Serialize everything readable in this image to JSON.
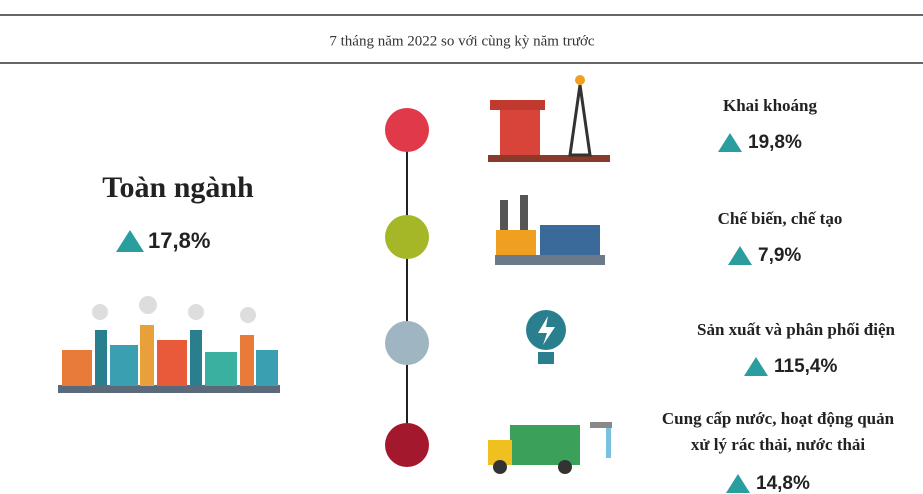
{
  "header": {
    "title": "7 tháng năm 2022 so với cùng kỳ năm trước"
  },
  "total": {
    "label": "Toàn ngành",
    "value": "17,8%"
  },
  "sectors": [
    {
      "label": [
        "Khai khoáng"
      ],
      "value": "19,8%"
    },
    {
      "label": [
        "Chế biến, chế tạo"
      ],
      "value": "7,9%"
    },
    {
      "label": [
        "Sản xuất và phân phối điện"
      ],
      "value": "115,4%"
    },
    {
      "label": [
        "Cung cấp nước, hoạt động quản",
        "xử lý rác thải, nước thải"
      ],
      "value": "14,8%"
    }
  ]
}
